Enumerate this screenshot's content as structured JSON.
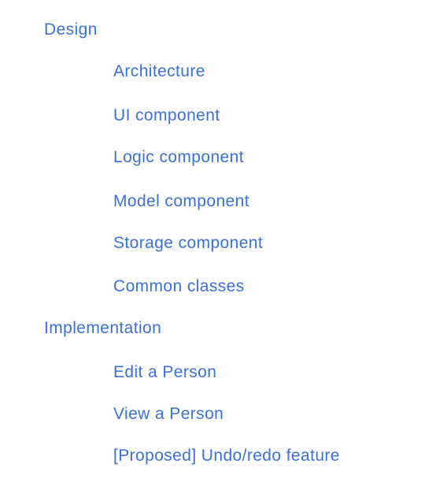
{
  "toc": {
    "design": {
      "label": "Design",
      "children": [
        {
          "label": "Architecture"
        },
        {
          "label": "UI component"
        },
        {
          "label": "Logic component"
        },
        {
          "label": "Model component"
        },
        {
          "label": "Storage component"
        },
        {
          "label": "Common classes"
        }
      ]
    },
    "implementation": {
      "label": "Implementation",
      "children": [
        {
          "label": "Edit a Person"
        },
        {
          "label": "View a Person"
        },
        {
          "label": "[Proposed] Undo/redo feature"
        }
      ]
    }
  },
  "colors": {
    "link": "#3a71d6",
    "background": "#ffffff"
  }
}
